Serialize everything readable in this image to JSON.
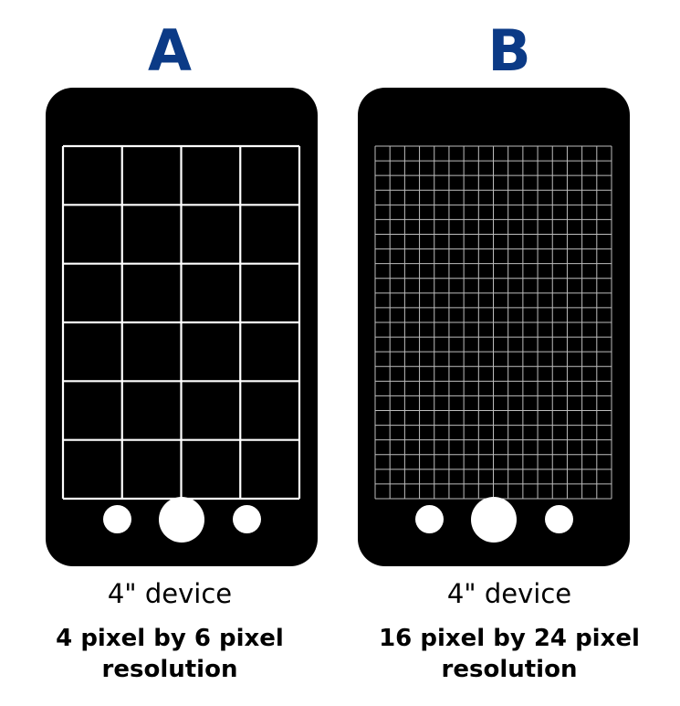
{
  "panels": [
    {
      "letter": "A",
      "device_size": "4\" device",
      "resolution_line1": "4 pixel by 6 pixel",
      "resolution_line2": "resolution",
      "grid_columns": 4,
      "grid_rows": 6
    },
    {
      "letter": "B",
      "device_size": "4\" device",
      "resolution_line1": "16 pixel by 24 pixel",
      "resolution_line2": "resolution",
      "grid_columns": 16,
      "grid_rows": 24
    }
  ],
  "colors": {
    "letter": "#0b3a86",
    "device": "#000000",
    "grid_a": "#ffffff",
    "grid_b": "#bdbdbd",
    "text": "#000000"
  }
}
